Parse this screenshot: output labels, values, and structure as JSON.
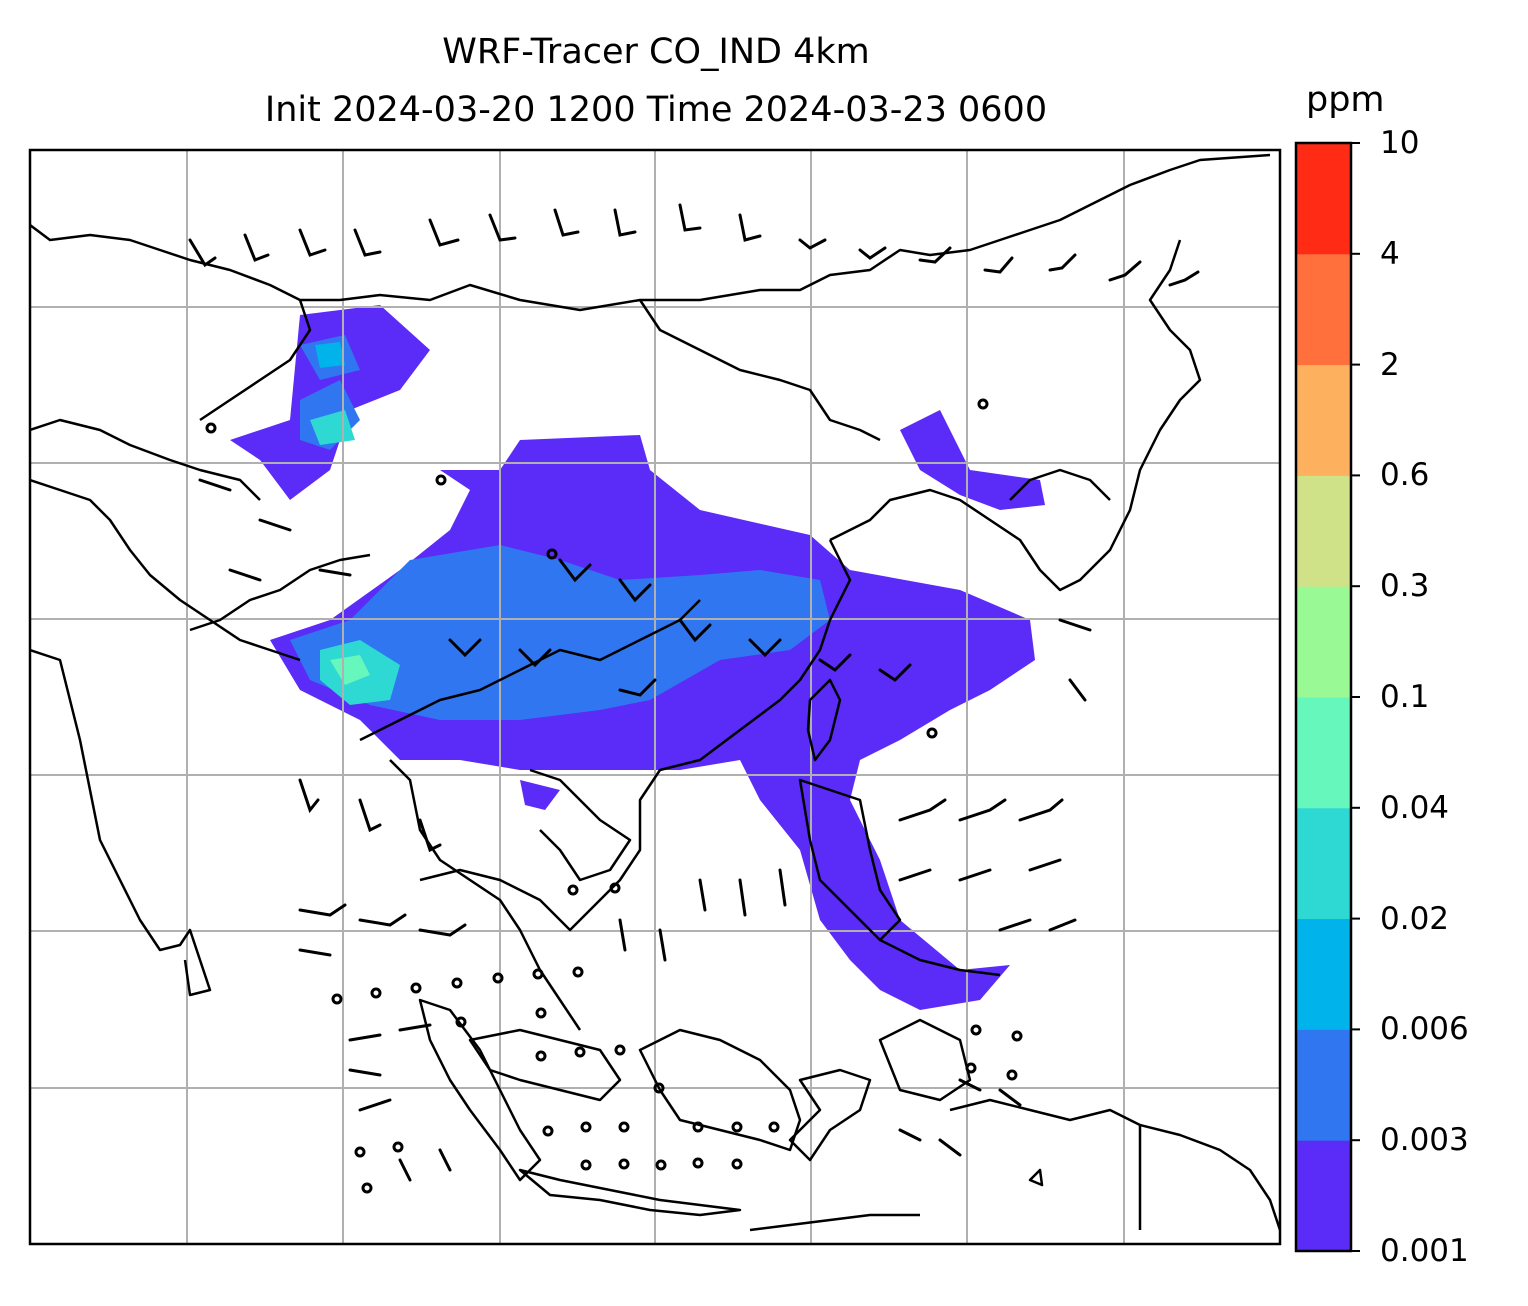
{
  "title": {
    "line1": "WRF-Tracer CO_IND 4km",
    "line2": "Init 2024-03-20 1200 Time 2024-03-23 0600"
  },
  "colorbar": {
    "unit": "ppm",
    "levels": [
      "0.001",
      "0.003",
      "0.006",
      "0.02",
      "0.04",
      "0.1",
      "0.3",
      "0.6",
      "2",
      "4",
      "10"
    ],
    "colors": [
      "#5b2bf7",
      "#3076f0",
      "#00b3ea",
      "#2ed8d3",
      "#66f7bc",
      "#98f995",
      "#cfe288",
      "#fdb15f",
      "#ff703d",
      "#ff2b14"
    ]
  },
  "map": {
    "projection": "lat-lon grid, gridlines on",
    "background": "#ffffff",
    "coastline_color": "#000000",
    "gridline_color": "#b0b0b0",
    "field": "CO tracer concentration (filled contours) with wind barbs"
  }
}
